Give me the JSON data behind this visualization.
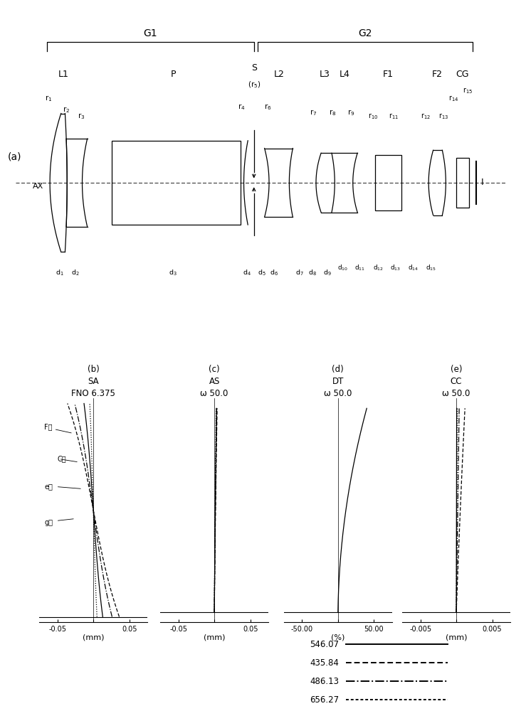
{
  "background_color": "#ffffff",
  "fig_width": 7.39,
  "fig_height": 10.0,
  "legend_entries": [
    {
      "label": "546.07",
      "linestyle": "-",
      "color": "#000000"
    },
    {
      "label": "435.84",
      "linestyle": "--",
      "color": "#000000"
    },
    {
      "label": "486.13",
      "linestyle": "-.",
      "color": "#000000"
    },
    {
      "label": "656.27",
      "linestyle": ":",
      "color": "#000000"
    }
  ],
  "plot_b": {
    "title_line1": "SA",
    "title_line2": "FNO 6.375",
    "xlabel": "(mm)",
    "xlim": [
      -0.075,
      0.075
    ],
    "xticks": [
      -0.05,
      0.0,
      0.05
    ],
    "xtick_labels": [
      "-0.05",
      "",
      "0.05"
    ],
    "label": "(b)"
  },
  "plot_c": {
    "title_line1": "AS",
    "title_line2": "ω 50.0",
    "xlabel": "(mm)",
    "xlim": [
      -0.075,
      0.075
    ],
    "xticks": [
      -0.05,
      0.0,
      0.05
    ],
    "xtick_labels": [
      "-0.05",
      "",
      "0.05"
    ],
    "label": "(c)"
  },
  "plot_d": {
    "title_line1": "DT",
    "title_line2": "ω 50.0",
    "xlabel": "(%)",
    "xlim": [
      -75,
      75
    ],
    "xticks": [
      -50.0,
      0.0,
      50.0
    ],
    "xtick_labels": [
      "-50.00",
      "",
      "50.00"
    ],
    "label": "(d)"
  },
  "plot_e": {
    "title_line1": "CC",
    "title_line2": "ω 50.0",
    "xlabel": "(mm)",
    "xlim": [
      -0.0075,
      0.0075
    ],
    "xticks": [
      -0.005,
      0.0,
      0.005
    ],
    "xtick_labels": [
      "-0.005",
      "",
      "0.005"
    ],
    "label": "(e)"
  }
}
